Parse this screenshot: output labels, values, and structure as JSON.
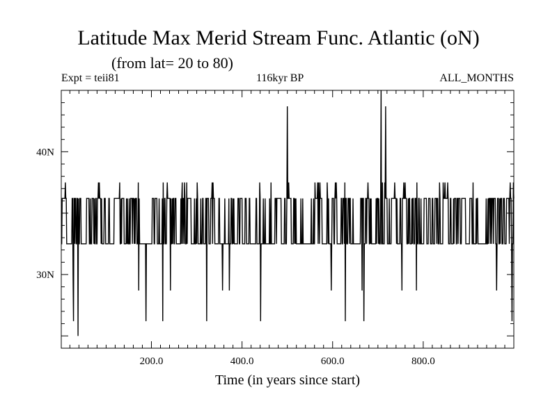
{
  "title": "Latitude Max Merid Stream Func. Atlantic (oN)",
  "subtitle": "(from lat= 20 to 80)",
  "header": {
    "left": "Expt = teii81",
    "center": "116kyr BP",
    "right": "ALL_MONTHS"
  },
  "colors": {
    "line": "#000000",
    "background": "#ffffff"
  },
  "chart_data": {
    "type": "line",
    "title": "Latitude Max Merid Stream Func. Atlantic (oN)",
    "xlabel": "Time (in years since start)",
    "ylabel": "",
    "xlim": [
      1,
      1000
    ],
    "ylim": [
      24,
      45
    ],
    "x_ticks": [
      {
        "value": 200,
        "label": "200.0"
      },
      {
        "value": 400,
        "label": "400.0"
      },
      {
        "value": 600,
        "label": "600.0"
      },
      {
        "value": 800,
        "label": "800.0"
      }
    ],
    "y_ticks": [
      {
        "value": 30,
        "label": "30N"
      },
      {
        "value": 40,
        "label": "40N"
      }
    ],
    "levels": [
      26.2,
      28.7,
      30.0,
      32.5,
      33.8,
      36.2,
      37.5,
      43.7,
      45.0
    ],
    "base_band": {
      "low": 32.5,
      "high": 36.2,
      "upper_excursion": 37.5
    },
    "excursions": [
      {
        "x": 27,
        "y": 30.0
      },
      {
        "x": 28,
        "y": 26.2
      },
      {
        "x": 38,
        "y": 25.0
      },
      {
        "x": 172,
        "y": 28.7
      },
      {
        "x": 188,
        "y": 26.2
      },
      {
        "x": 225,
        "y": 26.2
      },
      {
        "x": 242,
        "y": 28.7
      },
      {
        "x": 322,
        "y": 26.2
      },
      {
        "x": 357,
        "y": 28.7
      },
      {
        "x": 372,
        "y": 28.7
      },
      {
        "x": 441,
        "y": 26.2
      },
      {
        "x": 500,
        "y": 43.7
      },
      {
        "x": 597,
        "y": 28.7
      },
      {
        "x": 628,
        "y": 26.2
      },
      {
        "x": 665,
        "y": 28.7
      },
      {
        "x": 669,
        "y": 26.2
      },
      {
        "x": 707,
        "y": 45.0
      },
      {
        "x": 717,
        "y": 43.7
      },
      {
        "x": 753,
        "y": 28.7
      },
      {
        "x": 785,
        "y": 28.7
      },
      {
        "x": 962,
        "y": 28.7
      },
      {
        "x": 996,
        "y": 26.2
      }
    ]
  }
}
